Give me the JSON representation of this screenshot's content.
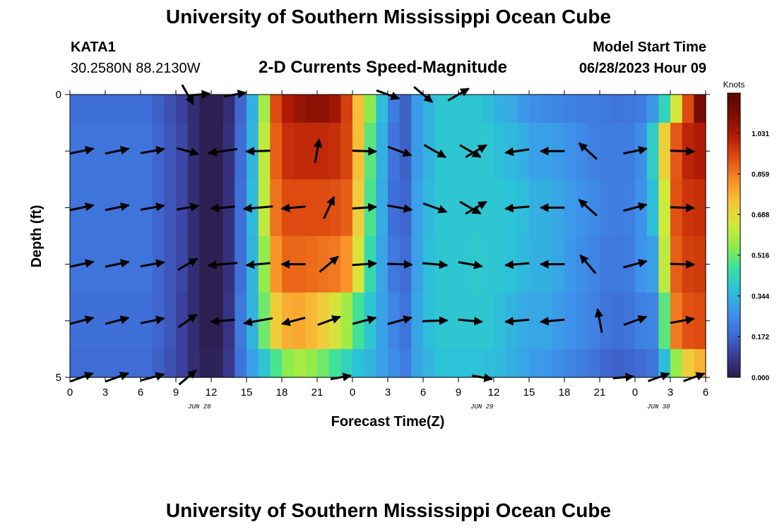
{
  "titles": {
    "main": "University of Southern Mississippi Ocean Cube",
    "bottom": "University of Southern Mississippi Ocean Cube"
  },
  "station": {
    "id": "KATA1",
    "coords": "30.2580N  88.2130W"
  },
  "model": {
    "label": "Model Start Time",
    "start": "06/28/2023 Hour 09"
  },
  "chart_data": {
    "type": "heatmap",
    "title": "2-D Currents Speed-Magnitude",
    "xlabel": "Forecast Time(Z)",
    "ylabel": "Depth (ft)",
    "x_tick_labels": [
      "0",
      "3",
      "6",
      "9",
      "12",
      "15",
      "18",
      "21",
      "0",
      "3",
      "6",
      "9",
      "12",
      "15",
      "18",
      "21",
      "0",
      "3",
      "6"
    ],
    "date_labels": [
      {
        "text": "JUN 28",
        "hour": 11
      },
      {
        "text": "JUN 29",
        "hour": 35
      },
      {
        "text": "JUN 30",
        "hour": 50
      }
    ],
    "x_range_hours": [
      0,
      54
    ],
    "y_tick_labels": [
      "0",
      "5"
    ],
    "ylim": [
      0,
      5
    ],
    "colorbar": {
      "title": "Knots",
      "ticks": [
        0.0,
        0.172,
        0.344,
        0.516,
        0.688,
        0.859,
        1.031
      ],
      "range": [
        0,
        1.2
      ],
      "colors": [
        "#2a1c48",
        "#3c3c98",
        "#3f6ed8",
        "#3e95ec",
        "#2cc2d8",
        "#39e0a0",
        "#8fec4c",
        "#d2e83a",
        "#f6c63a",
        "#f98e26",
        "#e04f12",
        "#b41c06",
        "#7c0d03",
        "#5a0703"
      ]
    },
    "rows": [
      "0.0-0.5",
      "0.5-1.5",
      "1.5-2.5",
      "2.5-3.5",
      "3.5-4.5",
      "4.5-5.0"
    ],
    "time_hours": [
      0,
      1,
      2,
      3,
      4,
      5,
      6,
      7,
      8,
      9,
      10,
      11,
      12,
      13,
      14,
      15,
      16,
      17,
      18,
      19,
      20,
      21,
      22,
      23,
      24,
      25,
      26,
      27,
      28,
      29,
      30,
      31,
      32,
      33,
      34,
      35,
      36,
      37,
      38,
      39,
      40,
      41,
      42,
      43,
      44,
      45,
      46,
      47,
      48,
      49,
      50,
      51,
      52,
      53
    ],
    "speed_knots": [
      [
        0.19,
        0.19,
        0.19,
        0.19,
        0.19,
        0.19,
        0.19,
        0.16,
        0.13,
        0.1,
        0.05,
        0.01,
        0.01,
        0.05,
        0.17,
        0.33,
        0.58,
        0.93,
        1.02,
        1.06,
        1.08,
        1.08,
        1.05,
        0.95,
        0.75,
        0.55,
        0.36,
        0.22,
        0.16,
        0.29,
        0.34,
        0.38,
        0.38,
        0.38,
        0.38,
        0.36,
        0.33,
        0.32,
        0.28,
        0.26,
        0.25,
        0.24,
        0.23,
        0.22,
        0.22,
        0.21,
        0.2,
        0.21,
        0.22,
        0.28,
        0.42,
        0.65,
        0.93,
        1.12
      ],
      [
        0.2,
        0.2,
        0.2,
        0.2,
        0.2,
        0.2,
        0.2,
        0.17,
        0.14,
        0.11,
        0.05,
        0.01,
        0.01,
        0.06,
        0.18,
        0.34,
        0.62,
        0.9,
        0.98,
        0.99,
        0.99,
        0.99,
        0.98,
        0.94,
        0.75,
        0.5,
        0.33,
        0.2,
        0.16,
        0.29,
        0.34,
        0.38,
        0.38,
        0.38,
        0.38,
        0.38,
        0.36,
        0.35,
        0.33,
        0.3,
        0.3,
        0.29,
        0.27,
        0.25,
        0.23,
        0.22,
        0.22,
        0.22,
        0.26,
        0.4,
        0.71,
        0.91,
        1.0,
        1.02
      ],
      [
        0.2,
        0.2,
        0.2,
        0.2,
        0.2,
        0.2,
        0.2,
        0.17,
        0.14,
        0.11,
        0.05,
        0.01,
        0.01,
        0.06,
        0.19,
        0.35,
        0.62,
        0.87,
        0.93,
        0.93,
        0.93,
        0.93,
        0.92,
        0.9,
        0.72,
        0.48,
        0.32,
        0.19,
        0.17,
        0.3,
        0.35,
        0.38,
        0.38,
        0.38,
        0.38,
        0.38,
        0.38,
        0.37,
        0.36,
        0.33,
        0.33,
        0.31,
        0.29,
        0.27,
        0.25,
        0.23,
        0.22,
        0.23,
        0.27,
        0.36,
        0.64,
        0.92,
        0.97,
        0.98
      ],
      [
        0.2,
        0.2,
        0.2,
        0.2,
        0.2,
        0.2,
        0.2,
        0.17,
        0.14,
        0.11,
        0.05,
        0.01,
        0.01,
        0.06,
        0.19,
        0.34,
        0.56,
        0.82,
        0.89,
        0.89,
        0.88,
        0.87,
        0.86,
        0.82,
        0.66,
        0.44,
        0.31,
        0.21,
        0.18,
        0.3,
        0.36,
        0.38,
        0.38,
        0.38,
        0.39,
        0.38,
        0.38,
        0.37,
        0.35,
        0.33,
        0.33,
        0.31,
        0.28,
        0.26,
        0.24,
        0.21,
        0.21,
        0.22,
        0.27,
        0.3,
        0.62,
        0.9,
        0.95,
        0.96
      ],
      [
        0.19,
        0.19,
        0.19,
        0.19,
        0.19,
        0.19,
        0.19,
        0.17,
        0.14,
        0.1,
        0.05,
        0.01,
        0.01,
        0.07,
        0.21,
        0.34,
        0.52,
        0.72,
        0.78,
        0.79,
        0.76,
        0.72,
        0.66,
        0.58,
        0.47,
        0.38,
        0.3,
        0.24,
        0.2,
        0.31,
        0.36,
        0.38,
        0.38,
        0.38,
        0.38,
        0.38,
        0.36,
        0.34,
        0.32,
        0.31,
        0.31,
        0.29,
        0.27,
        0.25,
        0.23,
        0.2,
        0.19,
        0.2,
        0.23,
        0.24,
        0.5,
        0.86,
        0.92,
        0.93
      ],
      [
        0.18,
        0.18,
        0.18,
        0.18,
        0.18,
        0.18,
        0.18,
        0.16,
        0.13,
        0.1,
        0.05,
        0.02,
        0.02,
        0.08,
        0.2,
        0.3,
        0.38,
        0.48,
        0.55,
        0.59,
        0.56,
        0.52,
        0.47,
        0.42,
        0.37,
        0.34,
        0.3,
        0.26,
        0.22,
        0.31,
        0.34,
        0.37,
        0.37,
        0.37,
        0.37,
        0.36,
        0.35,
        0.33,
        0.31,
        0.29,
        0.28,
        0.26,
        0.24,
        0.22,
        0.2,
        0.17,
        0.16,
        0.17,
        0.18,
        0.2,
        0.36,
        0.56,
        0.72,
        0.77
      ]
    ],
    "vectors": [
      {
        "row": 0,
        "points": [
          {
            "hour": 10,
            "dir": 150,
            "speed": 0.4
          },
          {
            "hour": 11,
            "dir": 85,
            "speed": 0.3
          },
          {
            "hour": 14,
            "dir": 80,
            "speed": 0.4
          },
          {
            "hour": 27,
            "dir": 110,
            "speed": 0.5
          },
          {
            "hour": 30,
            "dir": 130,
            "speed": 0.5
          },
          {
            "hour": 33,
            "dir": 60,
            "speed": 0.5
          }
        ]
      },
      {
        "row": 1,
        "points": [
          {
            "hour": 1,
            "dir": 78,
            "speed": 0.5
          },
          {
            "hour": 4,
            "dir": 78,
            "speed": 0.5
          },
          {
            "hour": 7,
            "dir": 80,
            "speed": 0.5
          },
          {
            "hour": 10,
            "dir": 105,
            "speed": 0.4
          },
          {
            "hour": 13,
            "dir": 262,
            "speed": 0.8
          },
          {
            "hour": 16,
            "dir": 268,
            "speed": 0.5
          },
          {
            "hour": 21,
            "dir": 10,
            "speed": 0.5
          },
          {
            "hour": 25,
            "dir": 92,
            "speed": 0.5
          },
          {
            "hour": 28,
            "dir": 110,
            "speed": 0.55
          },
          {
            "hour": 31,
            "dir": 120,
            "speed": 0.55
          },
          {
            "hour": 34,
            "dir": 120,
            "speed": 0.5
          },
          {
            "hour": 34.5,
            "dir": 60,
            "speed": 0.5
          },
          {
            "hour": 38,
            "dir": 262,
            "speed": 0.5
          },
          {
            "hour": 41,
            "dir": 270,
            "speed": 0.5
          },
          {
            "hour": 44,
            "dir": 312,
            "speed": 0.5
          },
          {
            "hour": 48,
            "dir": 78,
            "speed": 0.5
          },
          {
            "hour": 52,
            "dir": 92,
            "speed": 0.5
          }
        ]
      },
      {
        "row": 2,
        "points": [
          {
            "hour": 1,
            "dir": 78,
            "speed": 0.5
          },
          {
            "hour": 4,
            "dir": 78,
            "speed": 0.5
          },
          {
            "hour": 7,
            "dir": 80,
            "speed": 0.5
          },
          {
            "hour": 10,
            "dir": 80,
            "speed": 0.4
          },
          {
            "hour": 13,
            "dir": 265,
            "speed": 0.5
          },
          {
            "hour": 16,
            "dir": 265,
            "speed": 0.8
          },
          {
            "hour": 19,
            "dir": 265,
            "speed": 0.5
          },
          {
            "hour": 22,
            "dir": 25,
            "speed": 0.5
          },
          {
            "hour": 25,
            "dir": 86,
            "speed": 0.5
          },
          {
            "hour": 28,
            "dir": 100,
            "speed": 0.55
          },
          {
            "hour": 31,
            "dir": 110,
            "speed": 0.55
          },
          {
            "hour": 34,
            "dir": 120,
            "speed": 0.5
          },
          {
            "hour": 34.5,
            "dir": 60,
            "speed": 0.5
          },
          {
            "hour": 38,
            "dir": 265,
            "speed": 0.5
          },
          {
            "hour": 41,
            "dir": 270,
            "speed": 0.5
          },
          {
            "hour": 44,
            "dir": 312,
            "speed": 0.5
          },
          {
            "hour": 48,
            "dir": 75,
            "speed": 0.5
          },
          {
            "hour": 52,
            "dir": 92,
            "speed": 0.5
          }
        ]
      },
      {
        "row": 3,
        "points": [
          {
            "hour": 1,
            "dir": 78,
            "speed": 0.5
          },
          {
            "hour": 4,
            "dir": 78,
            "speed": 0.5
          },
          {
            "hour": 7,
            "dir": 80,
            "speed": 0.5
          },
          {
            "hour": 10,
            "dir": 60,
            "speed": 0.4
          },
          {
            "hour": 13,
            "dir": 265,
            "speed": 0.8
          },
          {
            "hour": 16,
            "dir": 265,
            "speed": 0.5
          },
          {
            "hour": 19,
            "dir": 270,
            "speed": 0.5
          },
          {
            "hour": 22,
            "dir": 50,
            "speed": 0.5
          },
          {
            "hour": 25,
            "dir": 86,
            "speed": 0.5
          },
          {
            "hour": 28,
            "dir": 92,
            "speed": 0.55
          },
          {
            "hour": 31,
            "dir": 95,
            "speed": 0.55
          },
          {
            "hour": 34,
            "dir": 100,
            "speed": 0.5
          },
          {
            "hour": 38,
            "dir": 265,
            "speed": 0.5
          },
          {
            "hour": 41,
            "dir": 270,
            "speed": 0.5
          },
          {
            "hour": 44,
            "dir": 320,
            "speed": 0.5
          },
          {
            "hour": 48,
            "dir": 75,
            "speed": 0.5
          },
          {
            "hour": 52,
            "dir": 92,
            "speed": 0.5
          }
        ]
      },
      {
        "row": 4,
        "points": [
          {
            "hour": 1,
            "dir": 75,
            "speed": 0.5
          },
          {
            "hour": 4,
            "dir": 75,
            "speed": 0.5
          },
          {
            "hour": 7,
            "dir": 78,
            "speed": 0.5
          },
          {
            "hour": 10,
            "dir": 55,
            "speed": 0.4
          },
          {
            "hour": 13,
            "dir": 265,
            "speed": 0.5
          },
          {
            "hour": 16,
            "dir": 260,
            "speed": 0.8
          },
          {
            "hour": 19,
            "dir": 255,
            "speed": 0.5
          },
          {
            "hour": 22,
            "dir": 70,
            "speed": 0.5
          },
          {
            "hour": 25,
            "dir": 75,
            "speed": 0.5
          },
          {
            "hour": 28,
            "dir": 75,
            "speed": 0.55
          },
          {
            "hour": 31,
            "dir": 88,
            "speed": 0.55
          },
          {
            "hour": 34,
            "dir": 95,
            "speed": 0.5
          },
          {
            "hour": 38,
            "dir": 265,
            "speed": 0.5
          },
          {
            "hour": 41,
            "dir": 265,
            "speed": 0.5
          },
          {
            "hour": 45,
            "dir": 350,
            "speed": 0.5
          },
          {
            "hour": 48,
            "dir": 70,
            "speed": 0.5
          },
          {
            "hour": 52,
            "dir": 80,
            "speed": 0.5
          }
        ]
      },
      {
        "row": 5,
        "points": [
          {
            "hour": 1,
            "dir": 70,
            "speed": 0.5
          },
          {
            "hour": 4,
            "dir": 70,
            "speed": 0.5
          },
          {
            "hour": 7,
            "dir": 75,
            "speed": 0.5
          },
          {
            "hour": 10,
            "dir": 50,
            "speed": 0.4
          },
          {
            "hour": 23,
            "dir": 80,
            "speed": 0.3
          },
          {
            "hour": 35,
            "dir": 100,
            "speed": 0.3
          },
          {
            "hour": 47,
            "dir": 85,
            "speed": 0.3
          },
          {
            "hour": 50,
            "dir": 70,
            "speed": 0.4
          },
          {
            "hour": 53,
            "dir": 70,
            "speed": 0.4
          }
        ]
      }
    ]
  }
}
